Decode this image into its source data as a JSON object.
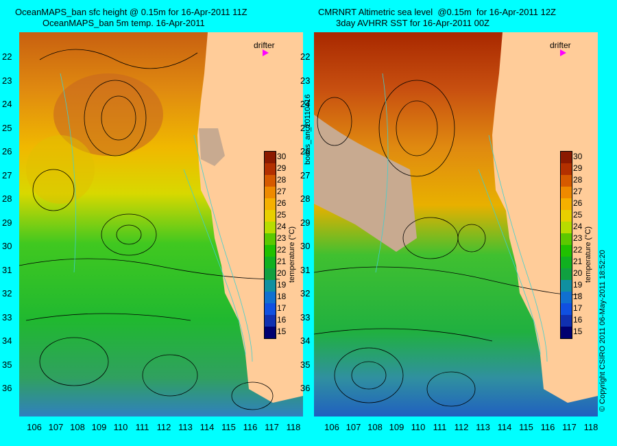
{
  "left_panel": {
    "title_line1": "OceanMAPS_ban sfc height @ 0.15m for 16-Apr-2011 11Z",
    "title_line2": "OceanMAPS_ban 5m temp. 16-Apr-2011"
  },
  "right_panel": {
    "title_line1": "CMRNRT Altimetric sea level  @0.15m  for 16-Apr-2011 12Z",
    "title_line2": "3day AVHRR SST for 16-Apr-2011 00Z"
  },
  "lat_labels": [
    "22",
    "23",
    "24",
    "25",
    "26",
    "27",
    "28",
    "29",
    "30",
    "31",
    "32",
    "33",
    "34",
    "35",
    "36"
  ],
  "lon_labels": [
    "106",
    "107",
    "108",
    "109",
    "110",
    "111",
    "112",
    "113",
    "114",
    "115",
    "116",
    "117",
    "118"
  ],
  "colorbar": {
    "labels": [
      "30",
      "29",
      "28",
      "27",
      "26",
      "25",
      "24",
      "23",
      "22",
      "21",
      "20",
      "19",
      "18",
      "17",
      "16",
      "15"
    ],
    "title": "temperature (°C)",
    "colors": [
      "#8b1a00",
      "#b33000",
      "#d65a00",
      "#ee8a00",
      "#f5b000",
      "#e8d000",
      "#b8dc00",
      "#5cc800",
      "#20c000",
      "#10b020",
      "#10a040",
      "#1090a0",
      "#1070d0",
      "#1050e0",
      "#1030b0",
      "#000070"
    ]
  },
  "drifter_label": "drifter",
  "drifter_color": "#ff00ff",
  "analysis_tag": "bodas_an_20110416",
  "copyright": "© Copyright CSIRO 2011  06-May-2011 18:52:20",
  "colors": {
    "background": "#00ffff",
    "land": "#ffcc99",
    "missing": "#c8aa90",
    "contour": "#000000",
    "isobath": "#40d0d0"
  }
}
